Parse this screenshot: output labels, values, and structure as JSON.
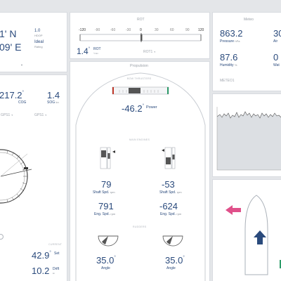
{
  "position": {
    "lat_tail": "1' N",
    "lon_tail": "09' E",
    "hdop_value": "1.0",
    "hdop_label": "HDOP",
    "rating_value": "Ideal",
    "rating_label": "Rating"
  },
  "rot": {
    "title": "ROT",
    "scale": [
      "-120",
      "-90",
      "-60",
      "-30",
      "0",
      "30",
      "60",
      "90",
      "120"
    ],
    "value": "1.4",
    "unit_label": "ROT",
    "unit_sub": "°/min",
    "source": "ROT1"
  },
  "meteo": {
    "title": "Meteo",
    "pressure_value": "863.2",
    "pressure_label": "Pressure",
    "pressure_unit": "hPa",
    "air_value": "30",
    "air_label": "Air",
    "humidity_value": "87.6",
    "humidity_label": "Humidity",
    "humidity_unit": "%",
    "water_value": "0",
    "water_label": "Wat",
    "source": "METEO1"
  },
  "nav": {
    "cog_value": "217.2",
    "cog_label": "COG",
    "sog_value": "1.4",
    "sog_label": "SOG",
    "sog_unit": "kn",
    "gps_left": "GPS1",
    "gps_right": "GPS1"
  },
  "current": {
    "title": "CURRENT",
    "set_value": "42.9",
    "set_label": "Set",
    "drift_value": "10.2",
    "drift_label": "Drift",
    "drift_unit": "kn"
  },
  "propulsion": {
    "title": "Propulsion",
    "bow_title": "BOW THRUSTERS",
    "power_value": "-46.2",
    "power_label": "Power",
    "main_title": "MAIN ENGINES",
    "rudders_title": "RUDDERS",
    "port": {
      "shaft_value": "79",
      "shaft_label": "Shaft Spd.",
      "shaft_unit": "rpm",
      "eng_value": "791",
      "eng_label": "Eng. Spd.",
      "eng_unit": "rpm",
      "angle_value": "35.0",
      "angle_label": "Angle"
    },
    "stbd": {
      "shaft_value": "-53",
      "shaft_label": "Shaft Spd.",
      "shaft_unit": "rpm",
      "eng_value": "-624",
      "eng_label": "Eng. Spd.",
      "eng_unit": "rpm",
      "angle_value": "35.0",
      "angle_label": "Angle"
    }
  },
  "colors": {
    "accent_blue": "#2a4a7c",
    "port_red": "#c0392b",
    "stbd_green": "#2e9c6a",
    "pink_arrow": "#e0508a",
    "chart_fill": "#dcdfe3"
  }
}
